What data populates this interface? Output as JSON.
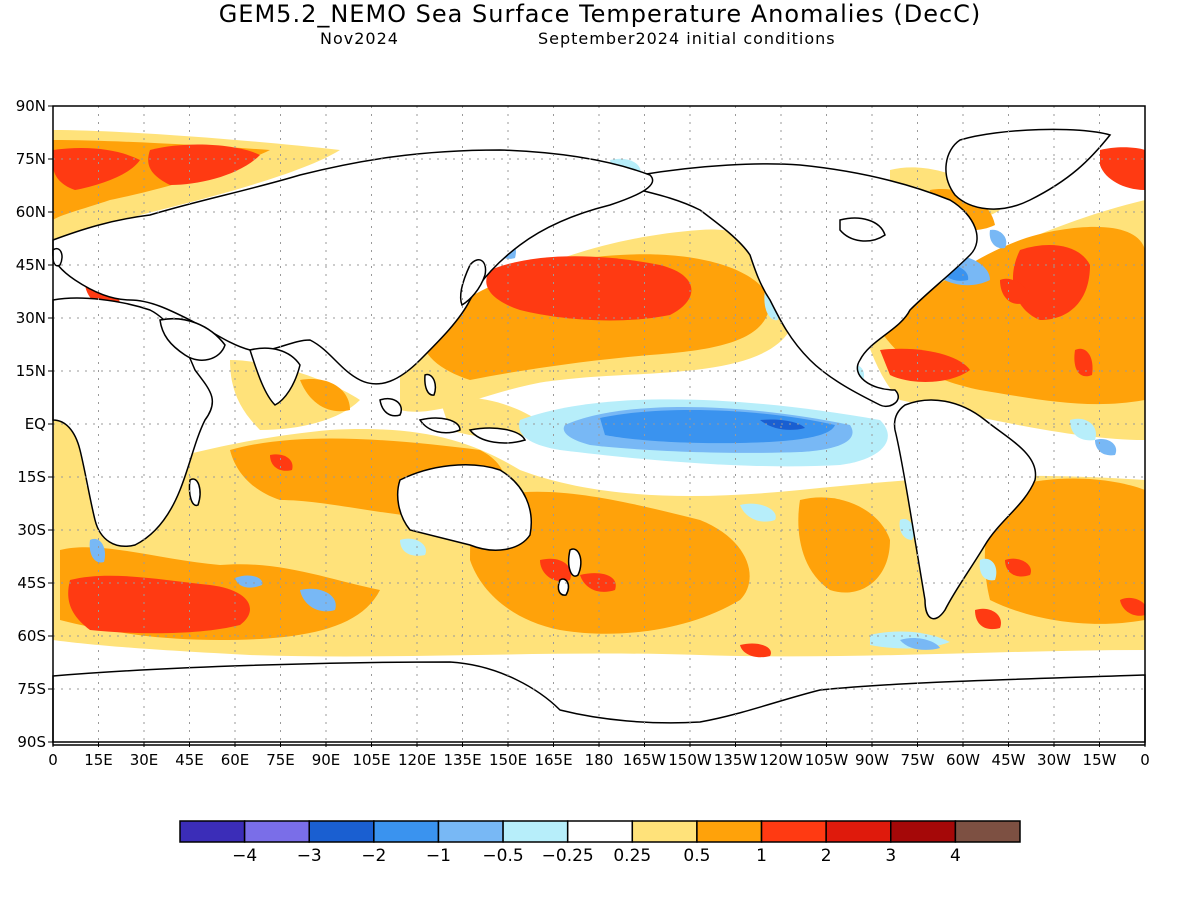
{
  "title": "GEM5.2_NEMO Sea Surface Temperature Anomalies (DecC)",
  "subtitle_left": "Nov2024",
  "subtitle_right": "September2024 initial conditions",
  "lat_labels": [
    "90N",
    "75N",
    "60N",
    "45N",
    "30N",
    "15N",
    "EQ",
    "15S",
    "30S",
    "45S",
    "60S",
    "75S",
    "90S"
  ],
  "lon_labels": [
    "0",
    "15E",
    "30E",
    "45E",
    "60E",
    "75E",
    "90E",
    "105E",
    "120E",
    "135E",
    "150E",
    "165E",
    "180",
    "165W",
    "150W",
    "135W",
    "120W",
    "105W",
    "90W",
    "75W",
    "60W",
    "45W",
    "30W",
    "15W",
    "0"
  ],
  "colorbar": {
    "colors": [
      "#3b2db8",
      "#7a6ee8",
      "#1a5fd1",
      "#3a93ef",
      "#78b8f5",
      "#b7eefa",
      "#ffffff",
      "#ffe27a",
      "#ffa20a",
      "#ff3a12",
      "#df1a0c",
      "#a50808",
      "#7d5042"
    ],
    "labels": [
      "−4",
      "−3",
      "−2",
      "−1",
      "−0.5",
      "−0.25",
      "0.25",
      "0.5",
      "1",
      "2",
      "3",
      "4"
    ]
  },
  "map_data": {
    "projection": "equirectangular",
    "lon_range": [
      0,
      360
    ],
    "lat_range": [
      -90,
      90
    ],
    "anomaly_regions": [
      {
        "region": "Central/East equatorial Pacific",
        "anomaly": "-1 to -0.5"
      },
      {
        "region": "North Pacific ~35-45N",
        "anomaly": "1 to 2"
      },
      {
        "region": "Western North Atlantic / Gulf Stream",
        "anomaly": "1 to 2"
      },
      {
        "region": "Southern Ocean 40-60S Indian sector",
        "anomaly": "1 to 2"
      },
      {
        "region": "Tropical Atlantic / Caribbean",
        "anomaly": "1 to 2"
      },
      {
        "region": "Labrador coast",
        "anomaly": "-2 to -1"
      }
    ]
  }
}
